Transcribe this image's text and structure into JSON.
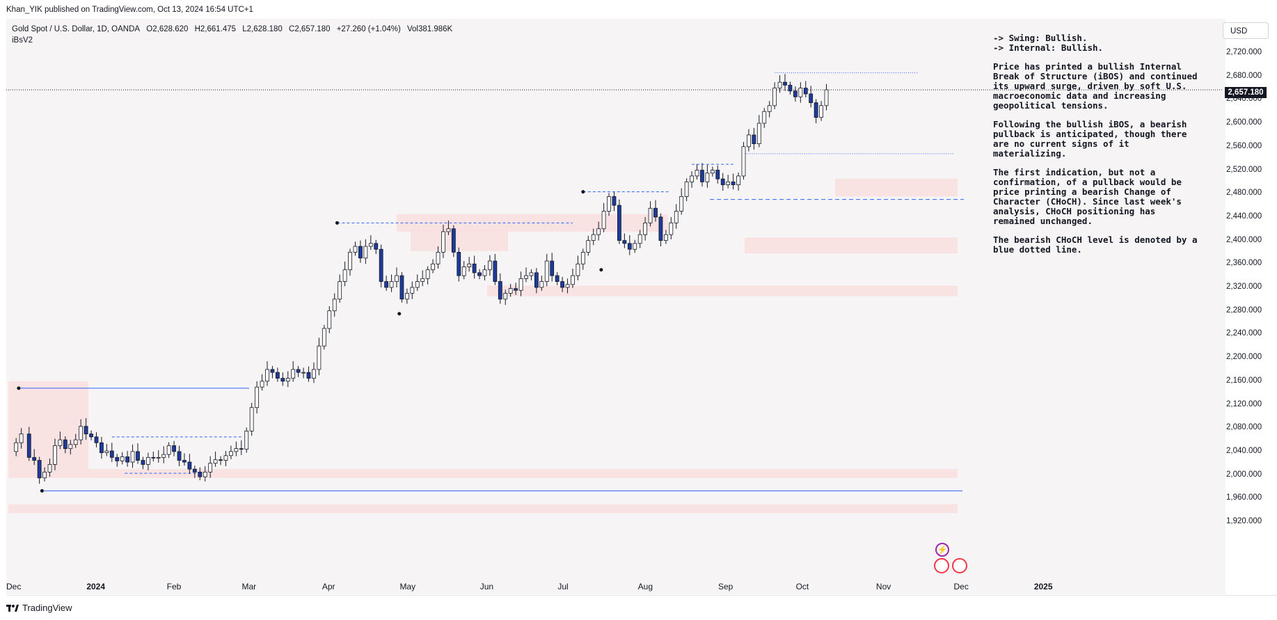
{
  "header": {
    "published": "Khan_YIK published on TradingView.com, Oct 13, 2024 16:54 UTC+1",
    "symbol": "Gold Spot / U.S. Dollar, 1D, OANDA",
    "open": "O2,628.620",
    "high": "H2,661.475",
    "low": "L2,628.180",
    "close": "C2,657.180",
    "change": "+27.260 (+1.04%)",
    "volume": "Vol381.986K",
    "indicator": "iBsV2"
  },
  "currency": "USD",
  "last_price_label": "2,657.180",
  "notes": {
    "swing": "-> Swing: Bullish.",
    "internal": "-> Internal: Bullish.",
    "p1": "Price has printed a bullish Internal Break of Structure (iBOS) and continued its upward surge, driven by soft U.S. macroeconomic data and increasing geopolitical tensions.",
    "p2": "Following the bullish iBOS, a bearish pullback is anticipated, though there are no current signs of it materializing.",
    "p3": "The first indication, but not a confirmation, of a pullback would be price printing a bearish Change of Character (CHoCH). Since last week's analysis, CHoCH positioning has remained unchanged.",
    "p4": "The bearish CHoCH level is denoted by a blue dotted line."
  },
  "brand": "TradingView",
  "colors": {
    "bull_candle": "#ffffff",
    "bear_candle": "#1e3a9a",
    "wick": "#131722",
    "zone": "#f9dede",
    "structure_line": "#2962ff"
  },
  "chart_data": {
    "type": "candlestick",
    "title": "Gold Spot / U.S. Dollar, 1D, OANDA",
    "y_ticks": [
      "2,720.000",
      "2,680.000",
      "2,640.000",
      "2,600.000",
      "2,560.000",
      "2,520.000",
      "2,480.000",
      "2,440.000",
      "2,400.000",
      "2,360.000",
      "2,320.000",
      "2,280.000",
      "2,240.000",
      "2,200.000",
      "2,160.000",
      "2,120.000",
      "2,080.000",
      "2,040.000",
      "2,000.000",
      "1,960.000",
      "1,920.000"
    ],
    "ylim": [
      1900,
      2740
    ],
    "x_ticks": [
      {
        "label": "Dec",
        "day": 0,
        "year": false
      },
      {
        "label": "2024",
        "day": 31,
        "year": true
      },
      {
        "label": "Feb",
        "day": 62,
        "year": false
      },
      {
        "label": "Mar",
        "day": 91,
        "year": false
      },
      {
        "label": "Apr",
        "day": 122,
        "year": false
      },
      {
        "label": "May",
        "day": 152,
        "year": false
      },
      {
        "label": "Jun",
        "day": 183,
        "year": false
      },
      {
        "label": "Jul",
        "day": 213,
        "year": false
      },
      {
        "label": "Aug",
        "day": 244,
        "year": false
      },
      {
        "label": "Sep",
        "day": 275,
        "year": false
      },
      {
        "label": "Oct",
        "day": 305,
        "year": false
      },
      {
        "label": "Nov",
        "day": 336,
        "year": false
      },
      {
        "label": "Dec",
        "day": 366,
        "year": false
      },
      {
        "label": "2025",
        "day": 397,
        "year": true
      }
    ],
    "closes": [
      [
        0,
        2040
      ],
      [
        3,
        2055
      ],
      [
        5,
        2070
      ],
      [
        8,
        2030
      ],
      [
        10,
        2025
      ],
      [
        12,
        1995
      ],
      [
        14,
        2005
      ],
      [
        16,
        2018
      ],
      [
        18,
        2050
      ],
      [
        20,
        2060
      ],
      [
        22,
        2045
      ],
      [
        24,
        2052
      ],
      [
        26,
        2060
      ],
      [
        28,
        2083
      ],
      [
        30,
        2070
      ],
      [
        32,
        2065
      ],
      [
        34,
        2055
      ],
      [
        36,
        2038
      ],
      [
        38,
        2041
      ],
      [
        40,
        2030
      ],
      [
        42,
        2024
      ],
      [
        44,
        2031
      ],
      [
        46,
        2022
      ],
      [
        48,
        2040
      ],
      [
        50,
        2025
      ],
      [
        52,
        2018
      ],
      [
        54,
        2030
      ],
      [
        56,
        2029
      ],
      [
        58,
        2030
      ],
      [
        60,
        2035
      ],
      [
        62,
        2050
      ],
      [
        64,
        2040
      ],
      [
        66,
        2025
      ],
      [
        68,
        2022
      ],
      [
        70,
        2010
      ],
      [
        72,
        2005
      ],
      [
        74,
        1997
      ],
      [
        76,
        2005
      ],
      [
        78,
        2020
      ],
      [
        80,
        2026
      ],
      [
        82,
        2025
      ],
      [
        84,
        2033
      ],
      [
        86,
        2040
      ],
      [
        88,
        2045
      ],
      [
        90,
        2044
      ],
      [
        92,
        2075
      ],
      [
        94,
        2115
      ],
      [
        96,
        2150
      ],
      [
        98,
        2160
      ],
      [
        100,
        2180
      ],
      [
        102,
        2175
      ],
      [
        104,
        2165
      ],
      [
        106,
        2160
      ],
      [
        108,
        2165
      ],
      [
        110,
        2180
      ],
      [
        112,
        2175
      ],
      [
        114,
        2175
      ],
      [
        116,
        2165
      ],
      [
        118,
        2180
      ],
      [
        120,
        2220
      ],
      [
        122,
        2250
      ],
      [
        124,
        2280
      ],
      [
        126,
        2300
      ],
      [
        128,
        2330
      ],
      [
        130,
        2350
      ],
      [
        132,
        2380
      ],
      [
        134,
        2390
      ],
      [
        136,
        2370
      ],
      [
        138,
        2390
      ],
      [
        140,
        2395
      ],
      [
        142,
        2385
      ],
      [
        144,
        2330
      ],
      [
        146,
        2320
      ],
      [
        148,
        2330
      ],
      [
        150,
        2340
      ],
      [
        152,
        2300
      ],
      [
        154,
        2310
      ],
      [
        156,
        2320
      ],
      [
        158,
        2330
      ],
      [
        160,
        2335
      ],
      [
        162,
        2350
      ],
      [
        164,
        2360
      ],
      [
        166,
        2380
      ],
      [
        168,
        2415
      ],
      [
        170,
        2420
      ],
      [
        172,
        2380
      ],
      [
        174,
        2340
      ],
      [
        176,
        2355
      ],
      [
        178,
        2360
      ],
      [
        180,
        2345
      ],
      [
        182,
        2340
      ],
      [
        184,
        2350
      ],
      [
        186,
        2365
      ],
      [
        188,
        2330
      ],
      [
        190,
        2300
      ],
      [
        192,
        2310
      ],
      [
        194,
        2318
      ],
      [
        196,
        2315
      ],
      [
        198,
        2335
      ],
      [
        200,
        2340
      ],
      [
        202,
        2345
      ],
      [
        204,
        2320
      ],
      [
        206,
        2330
      ],
      [
        208,
        2365
      ],
      [
        210,
        2340
      ],
      [
        212,
        2330
      ],
      [
        214,
        2320
      ],
      [
        216,
        2325
      ],
      [
        218,
        2340
      ],
      [
        220,
        2360
      ],
      [
        222,
        2380
      ],
      [
        224,
        2400
      ],
      [
        226,
        2410
      ],
      [
        228,
        2420
      ],
      [
        230,
        2450
      ],
      [
        232,
        2475
      ],
      [
        234,
        2460
      ],
      [
        236,
        2400
      ],
      [
        238,
        2395
      ],
      [
        240,
        2385
      ],
      [
        242,
        2395
      ],
      [
        244,
        2410
      ],
      [
        246,
        2430
      ],
      [
        248,
        2455
      ],
      [
        250,
        2440
      ],
      [
        252,
        2400
      ],
      [
        254,
        2410
      ],
      [
        256,
        2430
      ],
      [
        258,
        2450
      ],
      [
        260,
        2475
      ],
      [
        262,
        2500
      ],
      [
        264,
        2510
      ],
      [
        266,
        2520
      ],
      [
        268,
        2500
      ],
      [
        270,
        2515
      ],
      [
        272,
        2520
      ],
      [
        274,
        2505
      ],
      [
        276,
        2495
      ],
      [
        278,
        2500
      ],
      [
        280,
        2495
      ],
      [
        282,
        2510
      ],
      [
        284,
        2560
      ],
      [
        286,
        2580
      ],
      [
        288,
        2565
      ],
      [
        290,
        2600
      ],
      [
        292,
        2620
      ],
      [
        294,
        2630
      ],
      [
        296,
        2660
      ],
      [
        298,
        2670
      ],
      [
        300,
        2665
      ],
      [
        302,
        2655
      ],
      [
        304,
        2645
      ],
      [
        306,
        2660
      ],
      [
        308,
        2650
      ],
      [
        310,
        2635
      ],
      [
        312,
        2610
      ],
      [
        314,
        2630
      ],
      [
        316,
        2657
      ]
    ]
  }
}
